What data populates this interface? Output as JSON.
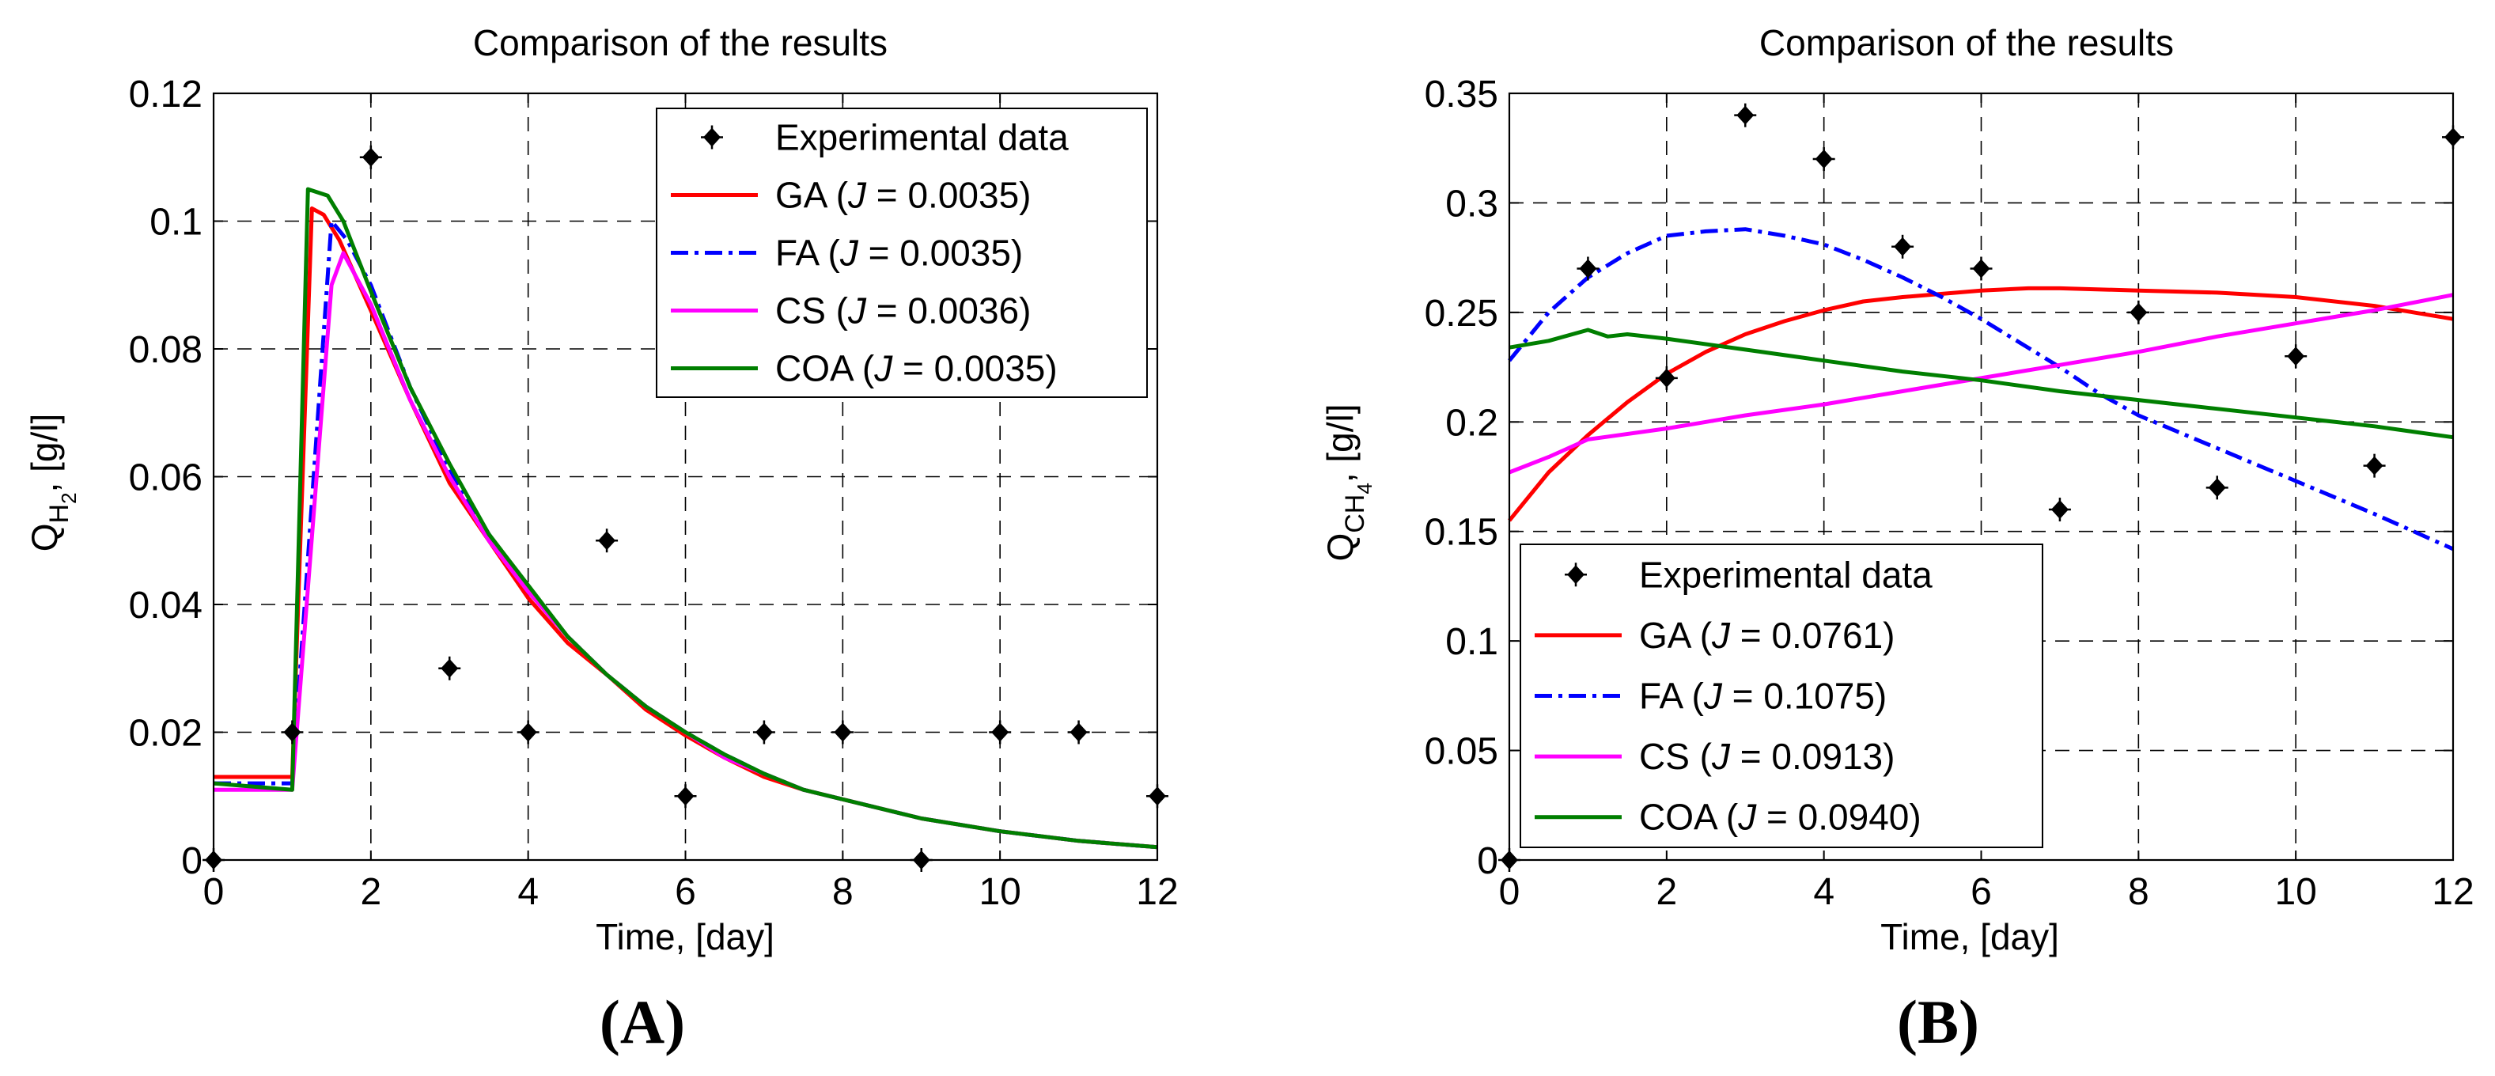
{
  "panels": [
    {
      "label": "(A)",
      "title": "Comparison of the results",
      "xlabel": "Time, [day]",
      "ylabel_main": "Q",
      "ylabel_sub": "H",
      "ylabel_subsub": "2",
      "ylabel_unit": ", [g/l]",
      "ylim": [
        0,
        0.12
      ],
      "xlim": [
        0,
        12
      ],
      "yticks": [
        "0",
        "0.02",
        "0.04",
        "0.06",
        "0.08",
        "0.1",
        "0.12"
      ],
      "xticks": [
        "0",
        "2",
        "4",
        "6",
        "8",
        "10",
        "12"
      ],
      "legend_position": "top-right",
      "legend": [
        {
          "text": "Experimental data"
        },
        {
          "prefix": "GA (",
          "j": "J",
          "rest": " = 0.0035)"
        },
        {
          "prefix": "FA (",
          "j": "J",
          "rest": " = 0.0035)"
        },
        {
          "prefix": "CS (",
          "j": "J",
          "rest": " = 0.0036)"
        },
        {
          "prefix": "COA (",
          "j": "J",
          "rest": " = 0.0035)"
        }
      ]
    },
    {
      "label": "(B)",
      "title": "Comparison of the results",
      "xlabel": "Time, [day]",
      "ylabel_main": "Q",
      "ylabel_sub": "CH",
      "ylabel_subsub": "4",
      "ylabel_unit": ", [g/l]",
      "ylim": [
        0,
        0.35
      ],
      "xlim": [
        0,
        12
      ],
      "yticks": [
        "0",
        "0.05",
        "0.1",
        "0.15",
        "0.2",
        "0.25",
        "0.3",
        "0.35"
      ],
      "xticks": [
        "0",
        "2",
        "4",
        "6",
        "8",
        "10",
        "12"
      ],
      "legend_position": "bottom-left",
      "legend": [
        {
          "text": "Experimental data"
        },
        {
          "prefix": "GA (",
          "j": "J",
          "rest": " = 0.0761)"
        },
        {
          "prefix": "FA (",
          "j": "J",
          "rest": " = 0.1075)"
        },
        {
          "prefix": "CS (",
          "j": "J",
          "rest": " = 0.0913)"
        },
        {
          "prefix": "COA (",
          "j": "J",
          "rest": " = 0.0940)"
        }
      ]
    }
  ],
  "chart_data": [
    {
      "type": "line",
      "title": "Comparison of the results",
      "xlabel": "Time, [day]",
      "ylabel": "Q_H2, [g/l]",
      "xlim": [
        0,
        12
      ],
      "ylim": [
        0,
        0.12
      ],
      "grid": true,
      "experimental": {
        "name": "Experimental data",
        "x": [
          0,
          1,
          2,
          3,
          4,
          5,
          6,
          7,
          8,
          9,
          10,
          11,
          12
        ],
        "y": [
          0,
          0.02,
          0.11,
          0.03,
          0.02,
          0.05,
          0.01,
          0.02,
          0.02,
          0,
          0.02,
          0.02,
          0.01
        ]
      },
      "series": [
        {
          "name": "GA (J = 0.0035)",
          "color": "#ff0000",
          "dash": "solid",
          "x": [
            0,
            1,
            1.25,
            1.4,
            1.6,
            2,
            2.5,
            3,
            3.5,
            4,
            4.5,
            5,
            5.5,
            6,
            6.5,
            7,
            7.5,
            8,
            9,
            10,
            11,
            12
          ],
          "y": [
            0.013,
            0.013,
            0.102,
            0.101,
            0.097,
            0.086,
            0.072,
            0.059,
            0.05,
            0.041,
            0.034,
            0.029,
            0.0235,
            0.0195,
            0.016,
            0.013,
            0.011,
            0.0095,
            0.0065,
            0.0045,
            0.003,
            0.002
          ]
        },
        {
          "name": "FA (J = 0.0035)",
          "color": "#0000ff",
          "dash": "dashdot",
          "x": [
            0,
            1,
            1.5,
            1.7,
            2,
            2.5,
            3,
            3.5,
            4,
            4.5,
            5,
            5.5,
            6,
            6.5,
            7,
            7.5,
            8,
            9,
            10,
            11,
            12
          ],
          "y": [
            0.012,
            0.012,
            0.1,
            0.097,
            0.09,
            0.074,
            0.061,
            0.051,
            0.042,
            0.035,
            0.029,
            0.024,
            0.02,
            0.0165,
            0.0135,
            0.011,
            0.0095,
            0.0065,
            0.0045,
            0.003,
            0.002
          ]
        },
        {
          "name": "CS (J = 0.0036)",
          "color": "#ff00ff",
          "dash": "solid",
          "x": [
            0,
            1,
            1.5,
            1.65,
            2,
            2.5,
            3,
            3.5,
            4,
            4.5,
            5,
            5.5,
            6,
            6.5,
            7,
            7.5,
            8,
            9,
            10,
            11,
            12
          ],
          "y": [
            0.011,
            0.011,
            0.09,
            0.095,
            0.087,
            0.072,
            0.06,
            0.05,
            0.042,
            0.035,
            0.029,
            0.024,
            0.02,
            0.016,
            0.0135,
            0.011,
            0.0095,
            0.0065,
            0.0045,
            0.003,
            0.002
          ]
        },
        {
          "name": "COA (J = 0.0035)",
          "color": "#007f00",
          "dash": "solid",
          "x": [
            0,
            1,
            1.2,
            1.45,
            1.65,
            2,
            2.5,
            3,
            3.5,
            4,
            4.5,
            5,
            5.5,
            6,
            6.5,
            7,
            7.5,
            8,
            9,
            10,
            11,
            12
          ],
          "y": [
            0.012,
            0.011,
            0.105,
            0.104,
            0.1,
            0.089,
            0.074,
            0.062,
            0.051,
            0.043,
            0.035,
            0.029,
            0.024,
            0.02,
            0.0165,
            0.0135,
            0.011,
            0.0095,
            0.0065,
            0.0045,
            0.003,
            0.002
          ]
        }
      ]
    },
    {
      "type": "line",
      "title": "Comparison of the results",
      "xlabel": "Time, [day]",
      "ylabel": "Q_CH4, [g/l]",
      "xlim": [
        0,
        12
      ],
      "ylim": [
        0,
        0.35
      ],
      "grid": true,
      "experimental": {
        "name": "Experimental data",
        "x": [
          0,
          1,
          2,
          3,
          4,
          5,
          6,
          7,
          8,
          9,
          10,
          11,
          12
        ],
        "y": [
          0,
          0.27,
          0.22,
          0.34,
          0.32,
          0.28,
          0.27,
          0.16,
          0.25,
          0.17,
          0.23,
          0.18,
          0.33
        ]
      },
      "series": [
        {
          "name": "GA (J = 0.0761)",
          "color": "#ff0000",
          "dash": "solid",
          "x": [
            0,
            0.5,
            1,
            1.5,
            2,
            2.5,
            3,
            3.5,
            4,
            4.5,
            5,
            6,
            6.6,
            7,
            8,
            9,
            10,
            11,
            12
          ],
          "y": [
            0.155,
            0.177,
            0.194,
            0.209,
            0.222,
            0.232,
            0.24,
            0.246,
            0.251,
            0.255,
            0.257,
            0.26,
            0.261,
            0.261,
            0.26,
            0.259,
            0.257,
            0.253,
            0.247
          ]
        },
        {
          "name": "FA (J = 0.1075)",
          "color": "#0000ff",
          "dash": "dashdot",
          "x": [
            0,
            0.5,
            1,
            1.5,
            2,
            2.5,
            3,
            3.5,
            4,
            4.5,
            5,
            5.5,
            6,
            6.5,
            7,
            7.5,
            8,
            9,
            10,
            11,
            12
          ],
          "y": [
            0.228,
            0.25,
            0.266,
            0.277,
            0.285,
            0.287,
            0.288,
            0.285,
            0.281,
            0.274,
            0.266,
            0.257,
            0.247,
            0.236,
            0.225,
            0.213,
            0.203,
            0.188,
            0.173,
            0.158,
            0.142
          ]
        },
        {
          "name": "CS (J = 0.0913)",
          "color": "#ff00ff",
          "dash": "solid",
          "x": [
            0,
            0.5,
            1,
            2,
            3,
            4,
            5,
            6,
            7,
            8,
            9,
            10,
            11,
            12
          ],
          "y": [
            0.177,
            0.184,
            0.192,
            0.197,
            0.203,
            0.208,
            0.214,
            0.22,
            0.226,
            0.232,
            0.239,
            0.245,
            0.251,
            0.258
          ]
        },
        {
          "name": "COA (J = 0.0940)",
          "color": "#007f00",
          "dash": "solid",
          "x": [
            0,
            0.5,
            1,
            1.25,
            1.5,
            2,
            3,
            4,
            5,
            6,
            7,
            8,
            9,
            10,
            11,
            12
          ],
          "y": [
            0.234,
            0.237,
            0.242,
            0.239,
            0.24,
            0.238,
            0.233,
            0.228,
            0.223,
            0.219,
            0.214,
            0.21,
            0.206,
            0.202,
            0.198,
            0.193
          ]
        }
      ]
    }
  ]
}
